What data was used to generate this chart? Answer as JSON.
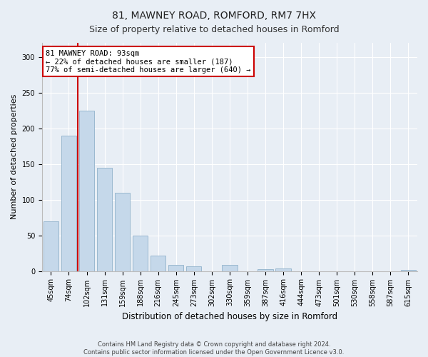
{
  "title1": "81, MAWNEY ROAD, ROMFORD, RM7 7HX",
  "title2": "Size of property relative to detached houses in Romford",
  "xlabel": "Distribution of detached houses by size in Romford",
  "ylabel": "Number of detached properties",
  "categories": [
    "45sqm",
    "74sqm",
    "102sqm",
    "131sqm",
    "159sqm",
    "188sqm",
    "216sqm",
    "245sqm",
    "273sqm",
    "302sqm",
    "330sqm",
    "359sqm",
    "387sqm",
    "416sqm",
    "444sqm",
    "473sqm",
    "501sqm",
    "530sqm",
    "558sqm",
    "587sqm",
    "615sqm"
  ],
  "values": [
    70,
    190,
    225,
    145,
    110,
    50,
    22,
    9,
    7,
    0,
    9,
    0,
    3,
    4,
    0,
    0,
    0,
    0,
    0,
    0,
    2
  ],
  "bar_color": "#c5d8ea",
  "bar_edge_color": "#9ab8d0",
  "vline_color": "#cc0000",
  "vline_x": 1.5,
  "annotation_text": "81 MAWNEY ROAD: 93sqm\n← 22% of detached houses are smaller (187)\n77% of semi-detached houses are larger (640) →",
  "annotation_box_facecolor": "#ffffff",
  "annotation_box_edgecolor": "#cc0000",
  "ylim": [
    0,
    320
  ],
  "yticks": [
    0,
    50,
    100,
    150,
    200,
    250,
    300
  ],
  "background_color": "#e8eef5",
  "plot_bg_color": "#e8eef5",
  "footer1": "Contains HM Land Registry data © Crown copyright and database right 2024.",
  "footer2": "Contains public sector information licensed under the Open Government Licence v3.0.",
  "title1_fontsize": 10,
  "title2_fontsize": 9,
  "tick_fontsize": 7,
  "xlabel_fontsize": 8.5,
  "ylabel_fontsize": 8,
  "annotation_fontsize": 7.5,
  "footer_fontsize": 6
}
